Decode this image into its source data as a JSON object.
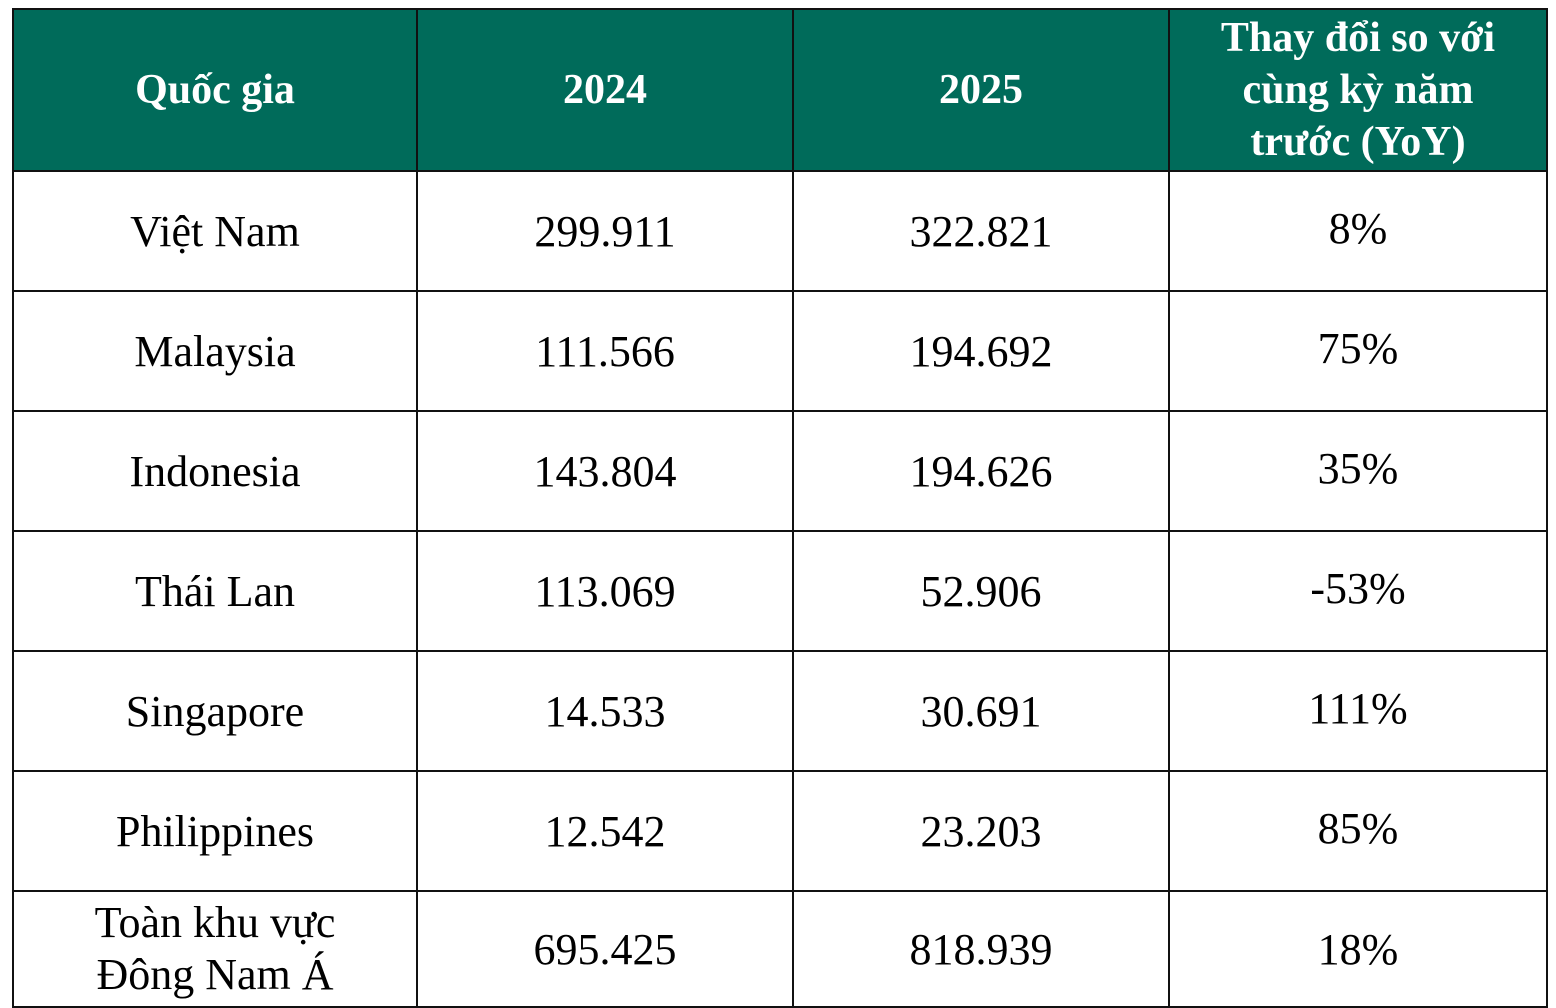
{
  "colors": {
    "header_bg": "#006b5a",
    "header_text": "#ffffff",
    "border": "#111111"
  },
  "table": {
    "headers": {
      "country": "Quốc gia",
      "y2024": "2024",
      "y2025": "2025",
      "yoy": "Thay đổi so với cùng kỳ năm trước (YoY)"
    },
    "rows": [
      {
        "country": "Việt Nam",
        "y2024": "299.911",
        "y2025": "322.821",
        "yoy": "8%"
      },
      {
        "country": "Malaysia",
        "y2024": "111.566",
        "y2025": "194.692",
        "yoy": "75%"
      },
      {
        "country": "Indonesia",
        "y2024": "143.804",
        "y2025": "194.626",
        "yoy": "35%"
      },
      {
        "country": "Thái Lan",
        "y2024": "113.069",
        "y2025": "52.906",
        "yoy": "-53%"
      },
      {
        "country": "Singapore",
        "y2024": "14.533",
        "y2025": "30.691",
        "yoy": "111%"
      },
      {
        "country": "Philippines",
        "y2024": "12.542",
        "y2025": "23.203",
        "yoy": "85%"
      }
    ],
    "total": {
      "country_line1": "Toàn khu vực",
      "country_line2": "Đông Nam Á",
      "y2024": "695.425",
      "y2025": "818.939",
      "yoy": "18%"
    }
  }
}
